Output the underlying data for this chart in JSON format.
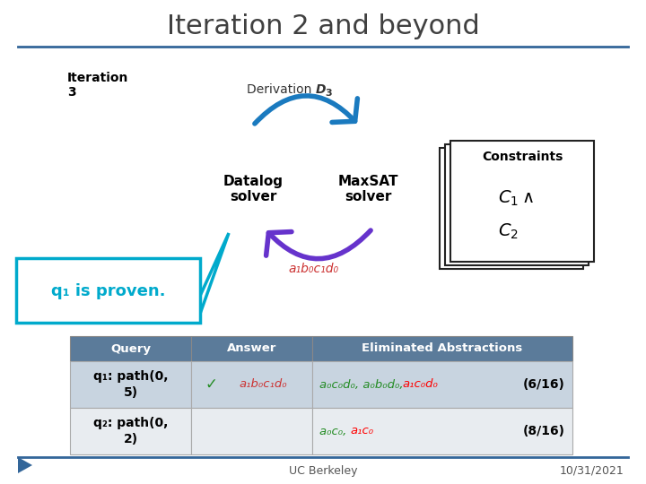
{
  "title": "Iteration 2 and beyond",
  "title_color": "#404040",
  "title_fontsize": 22,
  "bg_color": "#ffffff",
  "divider_color": "#336699",
  "iteration_label": "Iteration\n3",
  "datalog_label": "Datalog\nsolver",
  "maxsat_label": "MaxSAT\nsolver",
  "constraints_label": "Constraints",
  "proven_label": "q₁ is proven.",
  "proven_color": "#00aacc",
  "proven_border_color": "#00aacc",
  "answer_formula": "a₁b₀c₁d₀",
  "answer_color": "#cc3333",
  "table_header_bg": "#5b7b9a",
  "table_header_color": "#ffffff",
  "table_row1_bg": "#c8d4e0",
  "table_row2_bg": "#e8ecf0",
  "query_col_header": "Query",
  "answer_col_header": "Answer",
  "elim_col_header": "Eliminated Abstractions",
  "row1_query": "q₁: path(0,\n5)",
  "row1_answer_check": "✓",
  "row1_answer_text": "a₁b₀c₁d₀",
  "row1_elim_green": "a₀c₀d₀, a₀b₀d₀, ",
  "row1_elim_red": "a₁c₀d₀",
  "row1_count": "(6/16)",
  "row2_query": "q₂: path(0,\n2)",
  "row2_elim_green": "a₀c₀, ",
  "row2_elim_red": "a₁c₀",
  "row2_count": "(8/16)",
  "footer_left": "UC Berkeley",
  "footer_right": "10/31/2021",
  "arrow_blue_color": "#1a7abf",
  "arrow_purple_color": "#6633cc"
}
